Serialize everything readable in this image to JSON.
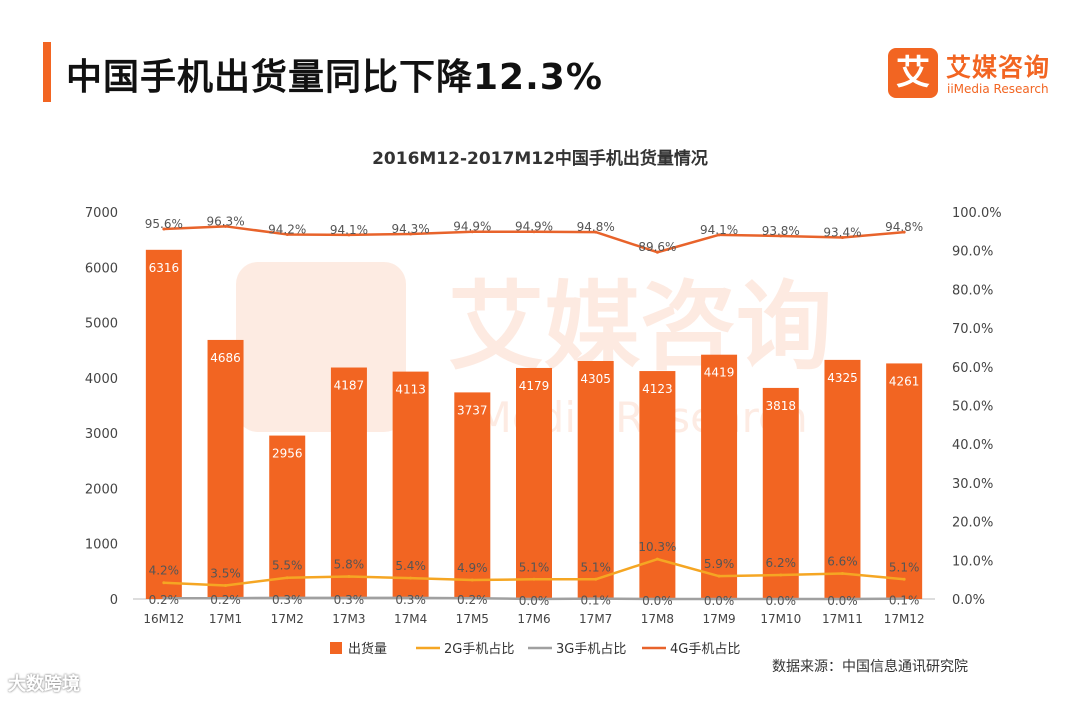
{
  "header": {
    "title": "中国手机出货量同比下降12.3%"
  },
  "logo": {
    "mark": "艾",
    "name_cn": "艾媒咨询",
    "name_en": "iiMedia Research"
  },
  "chart_data": {
    "type": "bar",
    "title": "2016M12-2017M12中国手机出货量情况",
    "categories": [
      "16M12",
      "17M1",
      "17M2",
      "17M3",
      "17M4",
      "17M5",
      "17M6",
      "17M7",
      "17M8",
      "17M9",
      "17M10",
      "17M11",
      "17M12"
    ],
    "y_left": {
      "ticks": [
        "0",
        "1000",
        "2000",
        "3000",
        "4000",
        "5000",
        "6000",
        "7000"
      ],
      "range": [
        0,
        7000
      ]
    },
    "y_right": {
      "ticks": [
        "0.0%",
        "10.0%",
        "20.0%",
        "30.0%",
        "40.0%",
        "50.0%",
        "60.0%",
        "70.0%",
        "80.0%",
        "90.0%",
        "100.0%"
      ],
      "range": [
        0,
        100
      ]
    },
    "series": [
      {
        "name": "出货量",
        "type": "bar",
        "axis": "left",
        "color": "#f26522",
        "values": [
          6316,
          4686,
          2956,
          4187,
          4113,
          3737,
          4179,
          4305,
          4123,
          4419,
          3818,
          4325,
          4261
        ],
        "labels": [
          "6316",
          "4686",
          "2956",
          "4187",
          "4113",
          "3737",
          "4179",
          "4305",
          "4123",
          "4419",
          "3818",
          "4325",
          "4261"
        ]
      },
      {
        "name": "2G手机占比",
        "type": "line",
        "axis": "right",
        "color": "#f5a623",
        "values": [
          4.2,
          3.5,
          5.5,
          5.8,
          5.4,
          4.9,
          5.1,
          5.1,
          10.3,
          5.9,
          6.2,
          6.6,
          5.1
        ],
        "labels": [
          "4.2%",
          "3.5%",
          "5.5%",
          "5.8%",
          "5.4%",
          "4.9%",
          "5.1%",
          "5.1%",
          "10.3%",
          "5.9%",
          "6.2%",
          "6.6%",
          "5.1%"
        ]
      },
      {
        "name": "3G手机占比",
        "type": "line",
        "axis": "right",
        "color": "#a0a0a0",
        "values": [
          0.2,
          0.2,
          0.3,
          0.3,
          0.3,
          0.2,
          0.0,
          0.1,
          0.0,
          0.0,
          0.0,
          0.0,
          0.1
        ],
        "labels": [
          "0.2%",
          "0.2%",
          "0.3%",
          "0.3%",
          "0.3%",
          "0.2%",
          "0.0%",
          "0.1%",
          "0.0%",
          "0.0%",
          "0.0%",
          "0.0%",
          "0.1%"
        ]
      },
      {
        "name": "4G手机占比",
        "type": "line",
        "axis": "right",
        "color": "#e8632b",
        "values": [
          95.6,
          96.3,
          94.2,
          94.1,
          94.3,
          94.9,
          94.9,
          94.8,
          89.6,
          94.1,
          93.8,
          93.4,
          94.8
        ],
        "labels": [
          "95.6%",
          "96.3%",
          "94.2%",
          "94.1%",
          "94.3%",
          "94.9%",
          "94.9%",
          "94.8%",
          "89.6%",
          "94.1%",
          "93.8%",
          "93.4%",
          "94.8%"
        ]
      }
    ],
    "legend_position": "bottom",
    "grid": false
  },
  "watermark": {
    "cn": "艾媒咨询",
    "en": "iiMedia Research"
  },
  "source": "数据来源：中国信息通讯研究院",
  "corner_watermark": "大数跨境"
}
